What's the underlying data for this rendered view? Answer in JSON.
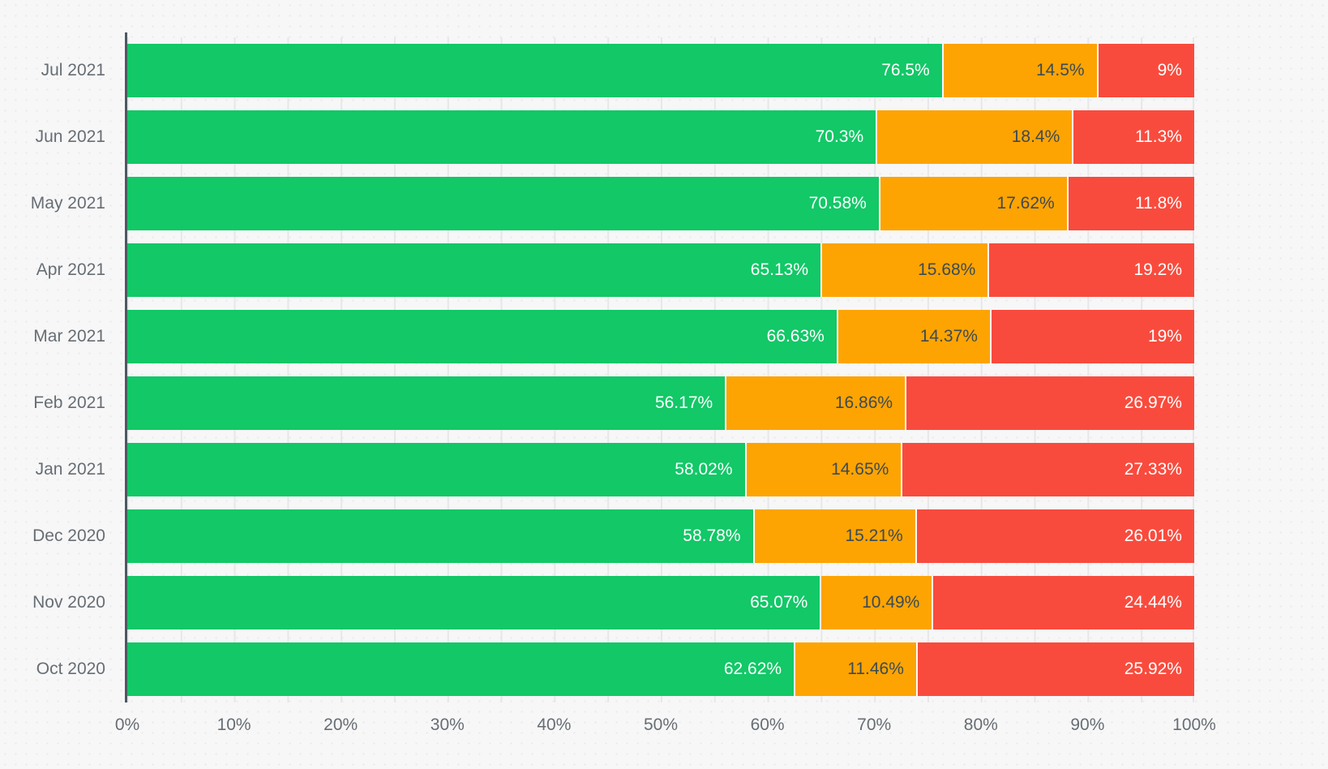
{
  "chart_data": {
    "type": "bar",
    "orientation": "horizontal",
    "stacked": true,
    "title": "",
    "xlabel": "",
    "ylabel": "",
    "legend_position": "none",
    "grid": {
      "vertical": true,
      "interval_percent": 5,
      "color": "#e7e7ea"
    },
    "xlim": [
      0,
      100
    ],
    "x_ticks": [
      "0%",
      "10%",
      "20%",
      "30%",
      "40%",
      "50%",
      "60%",
      "70%",
      "80%",
      "90%",
      "100%"
    ],
    "categories": [
      "Jul 2021",
      "Jun 2021",
      "May 2021",
      "Apr 2021",
      "Mar 2021",
      "Feb 2021",
      "Jan 2021",
      "Dec 2020",
      "Nov 2020",
      "Oct 2020"
    ],
    "series": [
      {
        "name": "green",
        "color": "#12c867",
        "text_color": "#ffffff",
        "values": [
          76.5,
          70.3,
          70.58,
          65.13,
          66.63,
          56.17,
          58.02,
          58.78,
          65.07,
          62.62
        ],
        "labels": [
          "76.5%",
          "70.3%",
          "70.58%",
          "65.13%",
          "66.63%",
          "56.17%",
          "58.02%",
          "58.78%",
          "65.07%",
          "62.62%"
        ]
      },
      {
        "name": "orange",
        "color": "#fda402",
        "text_color": "#3d4a52",
        "values": [
          14.5,
          18.4,
          17.62,
          15.68,
          14.37,
          16.86,
          14.65,
          15.21,
          10.49,
          11.46
        ],
        "labels": [
          "14.5%",
          "18.4%",
          "17.62%",
          "15.68%",
          "14.37%",
          "16.86%",
          "14.65%",
          "15.21%",
          "10.49%",
          "11.46%"
        ]
      },
      {
        "name": "red",
        "color": "#f94b3d",
        "text_color": "#ffffff",
        "values": [
          9,
          11.3,
          11.8,
          19.2,
          19,
          26.97,
          27.33,
          26.01,
          24.44,
          25.92
        ],
        "labels": [
          "9%",
          "11.3%",
          "11.8%",
          "19.2%",
          "19%",
          "26.97%",
          "27.33%",
          "26.01%",
          "24.44%",
          "25.92%"
        ]
      }
    ]
  },
  "colors": {
    "background": "#f7f7f8",
    "axis_line": "#4d5860",
    "tick_label": "#676e73",
    "segment_separator": "#fbfbfc"
  }
}
